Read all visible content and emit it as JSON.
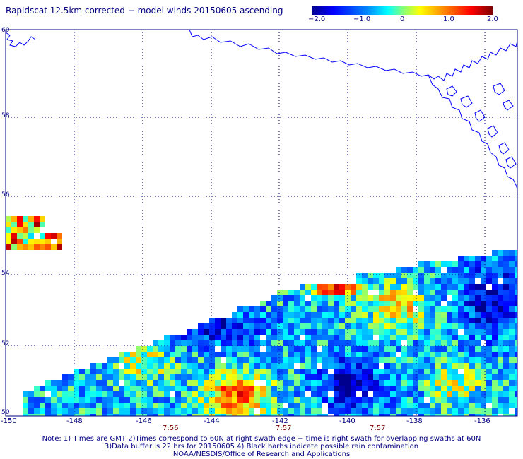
{
  "title": "Rapidscat 12.5km corrected − model winds 20150605 ascending",
  "colorbar": {
    "ticks": [
      "−2.0",
      "−1.0",
      "0",
      "1.0",
      "2.0"
    ],
    "min": -2.0,
    "max": 2.0
  },
  "axes": {
    "x_ticks": [
      "-150",
      "-148",
      "-146",
      "-144",
      "-142",
      "-140",
      "-138",
      "-136"
    ],
    "y_ticks": [
      "60",
      "58",
      "56",
      "54",
      "52",
      "50"
    ],
    "lon_range": [
      -150,
      -135
    ],
    "lat_range": [
      50,
      60
    ]
  },
  "times": [
    "7:56",
    "7:57",
    "7:57"
  ],
  "notes": {
    "line1": "Note: 1) Times are GMT 2)Times correspond to 60N at right swath edge − time is right swath for overlapping swaths at 60N",
    "line2": "3)Data buffer is 22 hrs for 20150605 4) Black barbs indicate possible rain contamination",
    "line3": "NOAA/NESDIS/Office of Research and Applications"
  },
  "colors": {
    "label": "#000080",
    "time": "#800000",
    "coast": "#0000ff"
  }
}
